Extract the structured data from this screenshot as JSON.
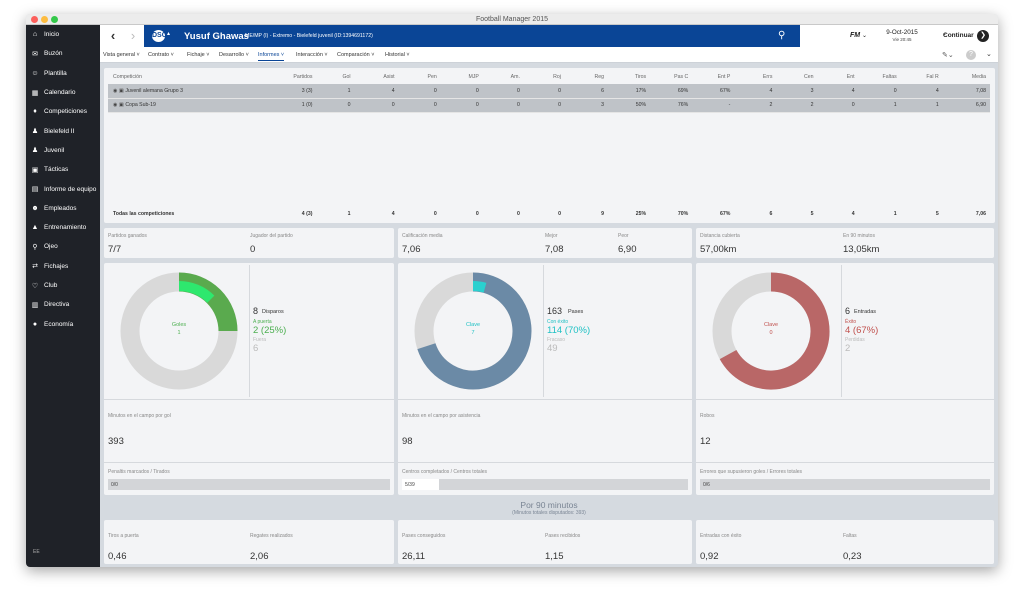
{
  "window": {
    "title": "Football Manager 2015"
  },
  "sidebar": {
    "items": [
      {
        "label": "Inicio",
        "icon": "home-icon"
      },
      {
        "label": "Buzón",
        "icon": "inbox-icon"
      },
      {
        "label": "Plantilla",
        "icon": "squad-icon"
      },
      {
        "label": "Calendario",
        "icon": "calendar-icon"
      },
      {
        "label": "Competiciones",
        "icon": "trophy-icon"
      },
      {
        "label": "Bielefeld II",
        "icon": "team-icon"
      },
      {
        "label": "Juvenil",
        "icon": "youth-icon"
      },
      {
        "label": "Tácticas",
        "icon": "tactics-icon"
      },
      {
        "label": "Informe de equipo",
        "icon": "report-icon"
      },
      {
        "label": "Empleados",
        "icon": "staff-icon"
      },
      {
        "label": "Entrenamiento",
        "icon": "training-icon"
      },
      {
        "label": "Ojeo",
        "icon": "scouting-icon"
      },
      {
        "label": "Fichajes",
        "icon": "transfers-icon"
      },
      {
        "label": "Club",
        "icon": "club-icon"
      },
      {
        "label": "Directiva",
        "icon": "board-icon"
      },
      {
        "label": "Economía",
        "icon": "finance-icon"
      }
    ],
    "footer": "EE"
  },
  "header": {
    "player_name": "Yusuf Ghawas",
    "player_info": "ME/MP (I) - Extremo - Bielefeld juvenil (ID:1394691172)",
    "crest": "DSC",
    "date": "9-Oct-2015",
    "time": "Vie 20:45",
    "continue_label": "Continuar",
    "logo": "FM"
  },
  "tabs": [
    "Vista general",
    "Contrato",
    "Fichaje",
    "Desarrollo",
    "Informes",
    "Interacción",
    "Comparación",
    "Historial"
  ],
  "active_tab": 4,
  "stats_table": {
    "headers": [
      "Competición",
      "Partidos",
      "Gol",
      "Asist",
      "Pen",
      "MJP",
      "Am.",
      "Roj",
      "Reg",
      "Tiros",
      "Pas C",
      "Ent P",
      "Errs",
      "Cen",
      "Ent",
      "Faltas",
      "Fal R",
      "Media"
    ],
    "rows": [
      [
        "Juvenil alemana Grupo 3",
        "3 (3)",
        "1",
        "4",
        "0",
        "0",
        "0",
        "0",
        "6",
        "17%",
        "69%",
        "67%",
        "4",
        "3",
        "4",
        "0",
        "4",
        "7,08"
      ],
      [
        "Copa Sub-19",
        "1 (0)",
        "0",
        "0",
        "0",
        "0",
        "0",
        "0",
        "3",
        "50%",
        "76%",
        "-",
        "2",
        "2",
        "0",
        "1",
        "1",
        "6,90"
      ]
    ],
    "total": [
      "Todas las competiciones",
      "4 (3)",
      "1",
      "4",
      "0",
      "0",
      "0",
      "0",
      "9",
      "25%",
      "70%",
      "67%",
      "6",
      "5",
      "4",
      "1",
      "5",
      "7,06"
    ]
  },
  "summary": [
    {
      "label": "Partidos ganados",
      "value": "7/7"
    },
    {
      "label": "Jugador del partido",
      "value": "0"
    },
    {
      "label": "Calificación media",
      "value": "7,06"
    },
    {
      "label": "Mejor",
      "value": "7,08"
    },
    {
      "label": "Peor",
      "value": "6,90"
    },
    {
      "label": "Distancia cubierta",
      "value": "57,00km"
    },
    {
      "label": "En 90 minutos",
      "value": "13,05km"
    }
  ],
  "cards": [
    {
      "donut_label": "Goles",
      "donut_value": "1",
      "donut_color": "#5aaa4e",
      "accent": "#4caf50",
      "highlight": "#2ee86e",
      "total_value": "8",
      "total_label": "Disparos",
      "good_label": "A puerta",
      "good_value": "2 (25%)",
      "bad_label": "Fuera",
      "bad_value": "6",
      "fraction": 0.25,
      "highlight_fraction": 0.125,
      "metric_label": "Minutos en el campo por gol",
      "metric_value": "393",
      "bar_label": "Penaltis marcados / Tirados",
      "bar_value": "0/0",
      "bar_fraction": 0
    },
    {
      "donut_label": "Clave",
      "donut_value": "7",
      "donut_color": "#6b8aa6",
      "accent": "#1fc1c4",
      "highlight": "#2ad0cf",
      "total_value": "163",
      "total_label": "Pases",
      "good_label": "Con éxito",
      "good_value": "114 (70%)",
      "bad_label": "Fracaso",
      "bad_value": "49",
      "fraction": 0.7,
      "highlight_fraction": 0.043,
      "metric_label": "Minutos en el campo por asistencia",
      "metric_value": "98",
      "bar_label": "Centros completados / Centros totales",
      "bar_value": "5/39",
      "bar_fraction": 0.128
    },
    {
      "donut_label": "Clave",
      "donut_value": "0",
      "donut_color": "#b96767",
      "accent": "#c0504d",
      "highlight": "#c0504d",
      "total_value": "6",
      "total_label": "Entradas",
      "good_label": "Éxito",
      "good_value": "4 (67%)",
      "bad_label": "Perdidas",
      "bad_value": "2",
      "fraction": 0.67,
      "highlight_fraction": 0,
      "metric_label": "Robos",
      "metric_value": "12",
      "bar_label": "Errores que supusieron goles / Errores totales",
      "bar_value": "0/6",
      "bar_fraction": 0
    }
  ],
  "per90": {
    "title": "Por 90 minutos",
    "subtitle": "(Minutos totales disputados: 393)",
    "items": [
      {
        "label": "Tiros a puerta",
        "value": "0,46"
      },
      {
        "label": "Regates realizados",
        "value": "2,06"
      },
      {
        "label": "Pases conseguidos",
        "value": "26,11"
      },
      {
        "label": "Pases recibidos",
        "value": "1,15"
      },
      {
        "label": "Entradas con éxito",
        "value": "0,92"
      },
      {
        "label": "Faltas",
        "value": "0,23"
      }
    ]
  }
}
